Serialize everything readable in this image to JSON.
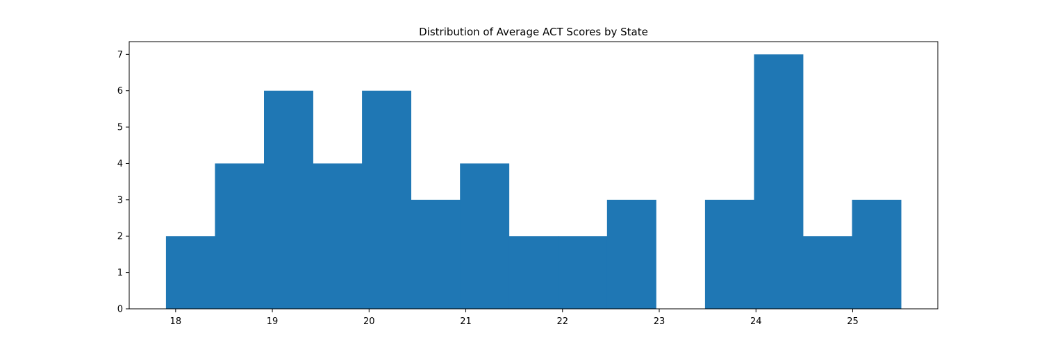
{
  "chart_data": {
    "type": "bar",
    "subtype": "histogram",
    "title": "Distribution of Average ACT Scores by State",
    "xlabel": "",
    "ylabel": "",
    "bins": [
      {
        "start": 17.9,
        "end": 18.406667,
        "count": 2
      },
      {
        "start": 18.406667,
        "end": 18.913333,
        "count": 4
      },
      {
        "start": 18.913333,
        "end": 19.42,
        "count": 6
      },
      {
        "start": 19.42,
        "end": 19.926667,
        "count": 4
      },
      {
        "start": 19.926667,
        "end": 20.433333,
        "count": 6
      },
      {
        "start": 20.433333,
        "end": 20.94,
        "count": 3
      },
      {
        "start": 20.94,
        "end": 21.446667,
        "count": 4
      },
      {
        "start": 21.446667,
        "end": 21.953333,
        "count": 2
      },
      {
        "start": 21.953333,
        "end": 22.46,
        "count": 2
      },
      {
        "start": 22.46,
        "end": 22.966667,
        "count": 3
      },
      {
        "start": 22.966667,
        "end": 23.473333,
        "count": 0
      },
      {
        "start": 23.473333,
        "end": 23.98,
        "count": 3
      },
      {
        "start": 23.98,
        "end": 24.486667,
        "count": 7
      },
      {
        "start": 24.486667,
        "end": 24.993333,
        "count": 2
      },
      {
        "start": 24.993333,
        "end": 25.5,
        "count": 3
      }
    ],
    "xlim": [
      17.52,
      25.88
    ],
    "ylim": [
      0,
      7.35
    ],
    "xticks": [
      18,
      19,
      20,
      21,
      22,
      23,
      24,
      25
    ],
    "yticks": [
      0,
      1,
      2,
      3,
      4,
      5,
      6,
      7
    ],
    "bar_color": "#1f77b4",
    "grid": false,
    "legend": false
  }
}
